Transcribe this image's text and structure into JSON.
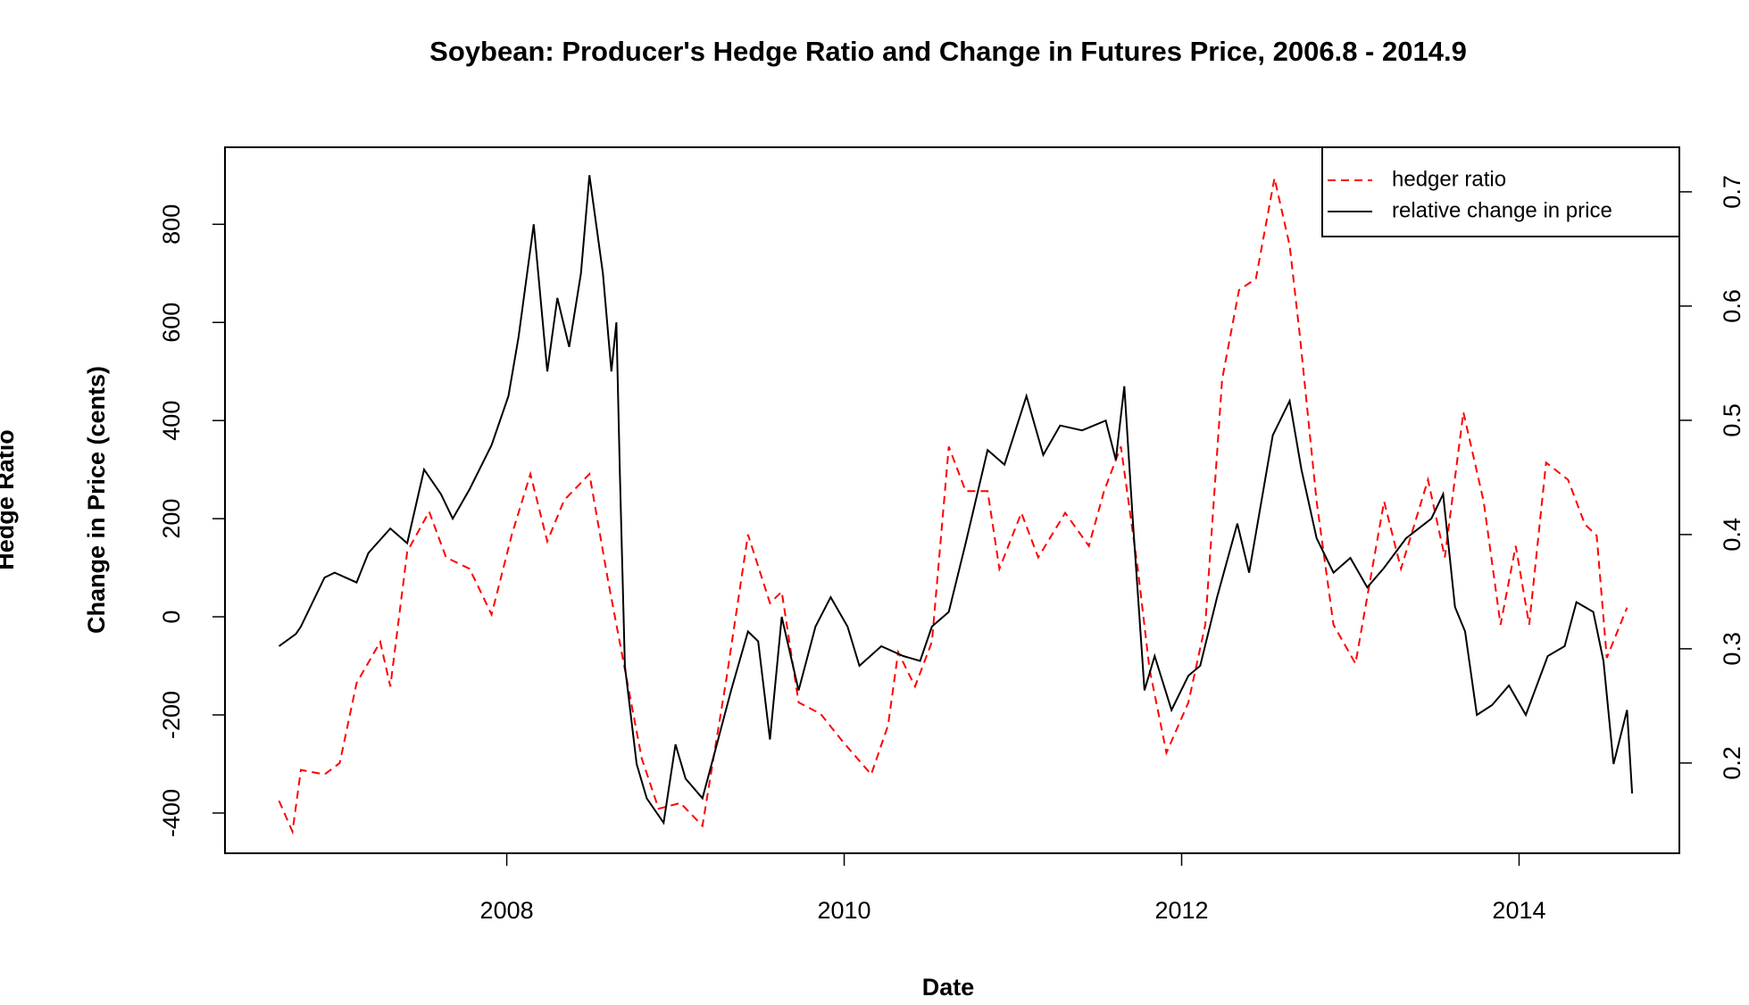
{
  "chart_data": {
    "type": "line",
    "title": "Soybean: Producer's Hedge Ratio and Change in Futures Price, 2006.8 - 2014.9",
    "x_label": "Date",
    "y_label": "Change in Price (cents)",
    "y2_label": "Hedge Ratio",
    "xlim": [
      2006.33,
      2014.95
    ],
    "xticks": [
      2008,
      2010,
      2012,
      2014
    ],
    "ylim": [
      -482,
      957
    ],
    "yticks": [
      -400,
      -200,
      0,
      200,
      400,
      600,
      800
    ],
    "y2lim": [
      0.121,
      0.739
    ],
    "y2ticks": [
      0.2,
      0.3,
      0.4,
      0.5,
      0.6,
      0.7
    ],
    "legend": "topright",
    "series": [
      {
        "name": "hedger ratio",
        "color": "#ff0000",
        "linestyle": "dashed",
        "axis": "y2",
        "x": [
          2006.65,
          2006.73,
          2006.78,
          2006.92,
          2007.01,
          2007.11,
          2007.25,
          2007.31,
          2007.41,
          2007.54,
          2007.64,
          2007.78,
          2007.91,
          2008.03,
          2008.14,
          2008.24,
          2008.34,
          2008.49,
          2008.6,
          2008.7,
          2008.8,
          2008.9,
          2009.03,
          2009.16,
          2009.3,
          2009.43,
          2009.56,
          2009.63,
          2009.73,
          2009.86,
          2009.99,
          2010.16,
          2010.26,
          2010.32,
          2010.42,
          2010.52,
          2010.62,
          2010.72,
          2010.85,
          2010.92,
          2011.05,
          2011.15,
          2011.31,
          2011.45,
          2011.54,
          2011.64,
          2011.74,
          2011.81,
          2011.91,
          2012.04,
          2012.14,
          2012.24,
          2012.34,
          2012.44,
          2012.55,
          2012.64,
          2012.7,
          2012.8,
          2012.9,
          2013.03,
          2013.2,
          2013.3,
          2013.46,
          2013.56,
          2013.67,
          2013.79,
          2013.89,
          2013.98,
          2014.06,
          2014.16,
          2014.29,
          2014.39,
          2014.46,
          2014.52,
          2014.64
        ],
        "values": [
          0.167,
          0.14,
          0.194,
          0.19,
          0.2,
          0.27,
          0.306,
          0.267,
          0.385,
          0.42,
          0.38,
          0.37,
          0.33,
          0.4,
          0.453,
          0.394,
          0.43,
          0.453,
          0.36,
          0.282,
          0.204,
          0.16,
          0.165,
          0.145,
          0.272,
          0.4,
          0.34,
          0.35,
          0.253,
          0.243,
          0.219,
          0.19,
          0.233,
          0.297,
          0.267,
          0.306,
          0.477,
          0.438,
          0.438,
          0.37,
          0.419,
          0.38,
          0.419,
          0.39,
          0.438,
          0.477,
          0.37,
          0.282,
          0.209,
          0.253,
          0.321,
          0.536,
          0.614,
          0.624,
          0.712,
          0.653,
          0.575,
          0.429,
          0.321,
          0.287,
          0.429,
          0.37,
          0.448,
          0.38,
          0.507,
          0.429,
          0.321,
          0.39,
          0.321,
          0.463,
          0.448,
          0.409,
          0.399,
          0.292,
          0.336
        ]
      },
      {
        "name": "relative change in price",
        "color": "#000000",
        "linestyle": "solid",
        "axis": "y",
        "x": [
          2006.65,
          2006.75,
          2006.78,
          2006.92,
          2006.98,
          2007.11,
          2007.18,
          2007.31,
          2007.41,
          2007.51,
          2007.61,
          2007.68,
          2007.78,
          2007.91,
          2008.01,
          2008.07,
          2008.16,
          2008.24,
          2008.3,
          2008.37,
          2008.44,
          2008.49,
          2008.57,
          2008.62,
          2008.65,
          2008.67,
          2008.7,
          2008.77,
          2008.83,
          2008.93,
          2009.0,
          2009.06,
          2009.16,
          2009.23,
          2009.33,
          2009.43,
          2009.49,
          2009.56,
          2009.63,
          2009.73,
          2009.83,
          2009.92,
          2010.02,
          2010.09,
          2010.22,
          2010.35,
          2010.45,
          2010.52,
          2010.62,
          2010.72,
          2010.85,
          2010.95,
          2011.08,
          2011.18,
          2011.28,
          2011.41,
          2011.55,
          2011.61,
          2011.66,
          2011.71,
          2011.78,
          2011.84,
          2011.94,
          2012.04,
          2012.11,
          2012.21,
          2012.33,
          2012.4,
          2012.54,
          2012.64,
          2012.71,
          2012.8,
          2012.9,
          2013.0,
          2013.1,
          2013.2,
          2013.33,
          2013.48,
          2013.55,
          2013.62,
          2013.68,
          2013.75,
          2013.84,
          2013.94,
          2014.04,
          2014.17,
          2014.27,
          2014.34,
          2014.44,
          2014.5,
          2014.56,
          2014.64,
          2014.67
        ],
        "values": [
          -60,
          -35,
          -20,
          80,
          90,
          70,
          130,
          180,
          150,
          300,
          250,
          200,
          260,
          350,
          450,
          570,
          800,
          500,
          650,
          550,
          700,
          900,
          700,
          500,
          600,
          300,
          -100,
          -300,
          -370,
          -420,
          -260,
          -330,
          -370,
          -280,
          -150,
          -30,
          -50,
          -250,
          0,
          -150,
          -20,
          40,
          -20,
          -100,
          -60,
          -80,
          -90,
          -20,
          10,
          150,
          340,
          310,
          450,
          330,
          390,
          380,
          400,
          320,
          470,
          200,
          -150,
          -80,
          -190,
          -120,
          -100,
          40,
          190,
          90,
          370,
          440,
          300,
          160,
          90,
          120,
          60,
          100,
          160,
          200,
          250,
          20,
          -30,
          -200,
          -180,
          -140,
          -200,
          -80,
          -60,
          30,
          10,
          -90,
          -300,
          -190,
          -360
        ]
      }
    ]
  }
}
